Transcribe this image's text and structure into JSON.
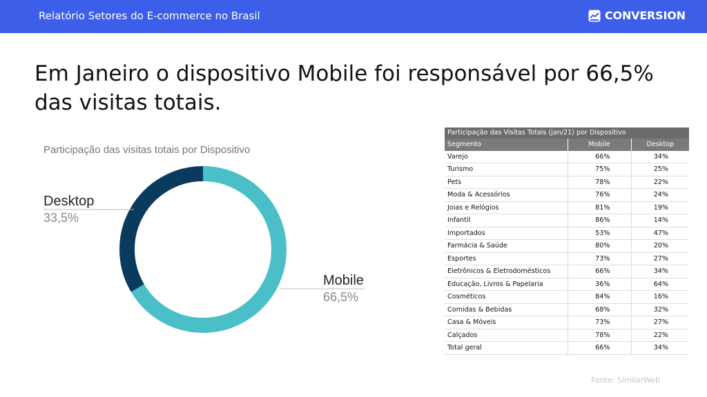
{
  "header": {
    "title": "Relatório Setores do E-commerce no Brasil",
    "logo_text": "CONVERSION"
  },
  "headline": "Em Janeiro o dispositivo Mobile foi responsável por 66,5% das visitas totais.",
  "chart_data": [
    {
      "type": "pie",
      "title": "Participação das visitas totais por Dispositivo",
      "slices": [
        {
          "name": "Mobile",
          "value": 66.5,
          "label": "66,5%",
          "color": "#4bbfc8"
        },
        {
          "name": "Desktop",
          "value": 33.5,
          "label": "33,5%",
          "color": "#0b3a5f"
        }
      ]
    },
    {
      "type": "table",
      "title": "Participação das Visitas Totais (jan/21) por Dispositivo",
      "columns": [
        "Segmento",
        "Mobile",
        "Desktop"
      ],
      "rows": [
        [
          "Varejo",
          "66%",
          "34%"
        ],
        [
          "Turismo",
          "75%",
          "25%"
        ],
        [
          "Pets",
          "78%",
          "22%"
        ],
        [
          "Moda & Acessórios",
          "76%",
          "24%"
        ],
        [
          "Joias e Relógios",
          "81%",
          "19%"
        ],
        [
          "Infantil",
          "86%",
          "14%"
        ],
        [
          "Importados",
          "53%",
          "47%"
        ],
        [
          "Farmácia & Saúde",
          "80%",
          "20%"
        ],
        [
          "Esportes",
          "73%",
          "27%"
        ],
        [
          "Eletrônicos & Eletrodomésticos",
          "66%",
          "34%"
        ],
        [
          "Educação, Livros & Papelaria",
          "36%",
          "64%"
        ],
        [
          "Cosméticos",
          "84%",
          "16%"
        ],
        [
          "Comidas & Bebidas",
          "68%",
          "32%"
        ],
        [
          "Casa & Móveis",
          "73%",
          "27%"
        ],
        [
          "Calçados",
          "78%",
          "22%"
        ],
        [
          "Total geral",
          "66%",
          "34%"
        ]
      ]
    }
  ],
  "source": "Fonte: SimilarWeb"
}
